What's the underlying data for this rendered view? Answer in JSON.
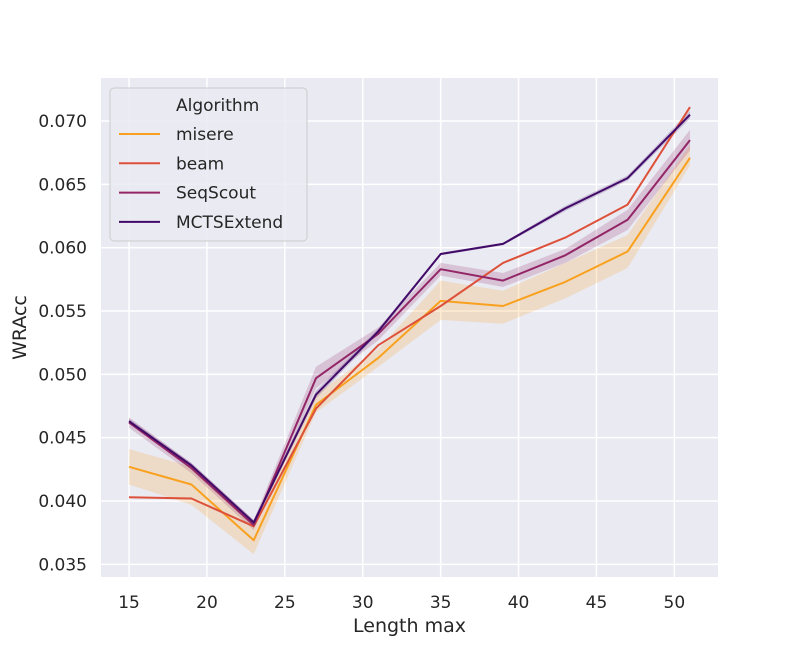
{
  "chart_data": {
    "type": "line",
    "xlabel": "Length max",
    "ylabel": "WRAcc",
    "xlim": [
      13.2,
      52.8
    ],
    "ylim": [
      0.034,
      0.0734
    ],
    "xticks": [
      "15",
      "20",
      "25",
      "30",
      "35",
      "40",
      "45",
      "50"
    ],
    "yticks": [
      "0.035",
      "0.040",
      "0.045",
      "0.050",
      "0.055",
      "0.060",
      "0.065",
      "0.070"
    ],
    "grid": true,
    "legend": {
      "title": "Algorithm",
      "position": "upper-left"
    },
    "x": [
      15,
      19,
      23,
      27,
      31,
      35,
      39,
      43,
      47,
      51
    ],
    "series": [
      {
        "name": "misere",
        "color": "#f9a11e",
        "values": [
          0.0427,
          0.0413,
          0.0369,
          0.0476,
          0.0513,
          0.0558,
          0.0554,
          0.0573,
          0.0597,
          0.0671
        ],
        "lower": [
          0.0413,
          0.0397,
          0.0358,
          0.047,
          0.0506,
          0.0543,
          0.054,
          0.056,
          0.0584,
          0.0665
        ],
        "upper": [
          0.0441,
          0.0427,
          0.038,
          0.0484,
          0.052,
          0.0574,
          0.0566,
          0.0588,
          0.061,
          0.0681
        ]
      },
      {
        "name": "beam",
        "color": "#dd513a",
        "values": [
          0.0403,
          0.0402,
          0.038,
          0.0473,
          0.0523,
          0.0554,
          0.0588,
          0.0608,
          0.0634,
          0.0711
        ]
      },
      {
        "name": "SeqScout",
        "color": "#932667",
        "values": [
          0.0462,
          0.0426,
          0.0381,
          0.0497,
          0.0532,
          0.0583,
          0.0574,
          0.0594,
          0.0622,
          0.0685
        ],
        "lower": [
          0.0458,
          0.0422,
          0.0377,
          0.0489,
          0.0527,
          0.0578,
          0.0569,
          0.0588,
          0.0614,
          0.0677
        ],
        "upper": [
          0.0466,
          0.043,
          0.0385,
          0.0506,
          0.0537,
          0.0588,
          0.058,
          0.0599,
          0.063,
          0.0693
        ]
      },
      {
        "name": "MCTSExtend",
        "color": "#420a68",
        "values": [
          0.0463,
          0.0428,
          0.0383,
          0.0484,
          0.0534,
          0.0595,
          0.0603,
          0.0631,
          0.0655,
          0.0705
        ],
        "lower": [
          0.0461,
          0.0426,
          0.0381,
          0.0481,
          0.0532,
          0.0594,
          0.0602,
          0.0629,
          0.0653,
          0.0702
        ],
        "upper": [
          0.0465,
          0.043,
          0.0385,
          0.0487,
          0.0536,
          0.0596,
          0.0604,
          0.0633,
          0.0657,
          0.0708
        ]
      }
    ]
  }
}
